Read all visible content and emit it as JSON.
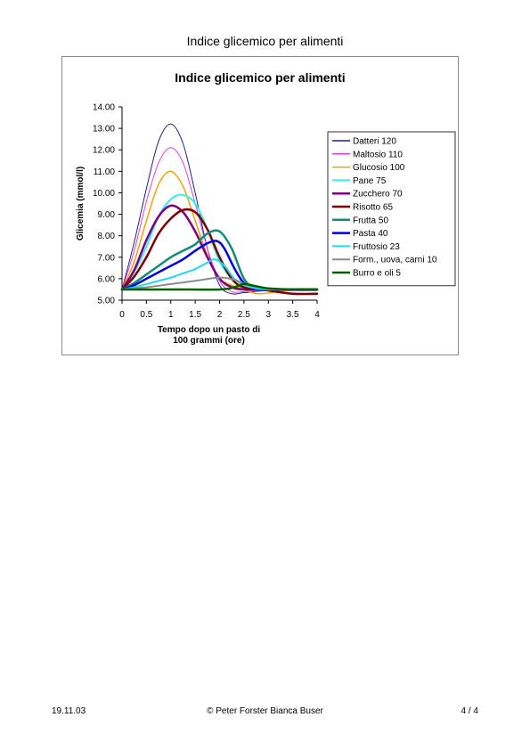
{
  "header": {
    "title": "Indice glicemico per alimenti"
  },
  "footer": {
    "date": "19.11.03",
    "copyright": "© Peter Forster Bianca Buser",
    "page": "4 / 4"
  },
  "chart_data": {
    "type": "line",
    "title": "Indice glicemico per alimenti",
    "xlabel_lines": [
      "Tempo dopo un pasto di",
      "100 grammi (ore)"
    ],
    "ylabel": "Glicemia (mmol/l)",
    "xlim": [
      0,
      4
    ],
    "ylim": [
      5,
      14
    ],
    "x_ticks": [
      "0",
      "0.5",
      "1",
      "1.5",
      "2",
      "2.5",
      "3",
      "3.5",
      "4"
    ],
    "y_ticks": [
      "5.00",
      "6.00",
      "7.00",
      "8.00",
      "9.00",
      "10.00",
      "11.00",
      "12.00",
      "13.00",
      "14.00"
    ],
    "grid": false,
    "legend_position": "right",
    "series": [
      {
        "name": "Datteri 120",
        "color": "#1f1f8c",
        "width": 1,
        "points": [
          [
            0,
            5.5
          ],
          [
            0.25,
            7.7
          ],
          [
            0.5,
            10.2
          ],
          [
            0.75,
            12.4
          ],
          [
            1,
            13.2
          ],
          [
            1.25,
            12.3
          ],
          [
            1.5,
            10.0
          ],
          [
            1.75,
            7.4
          ],
          [
            2,
            5.7
          ],
          [
            2.25,
            5.3
          ],
          [
            2.5,
            5.35
          ],
          [
            3,
            5.45
          ],
          [
            3.5,
            5.45
          ],
          [
            4,
            5.45
          ]
        ]
      },
      {
        "name": "Maltosio 110",
        "color": "#e040e0",
        "width": 1,
        "points": [
          [
            0,
            5.5
          ],
          [
            0.25,
            7.3
          ],
          [
            0.5,
            9.6
          ],
          [
            0.75,
            11.4
          ],
          [
            1,
            12.1
          ],
          [
            1.25,
            11.4
          ],
          [
            1.5,
            9.5
          ],
          [
            1.75,
            7.4
          ],
          [
            2,
            5.9
          ],
          [
            2.25,
            5.4
          ],
          [
            2.5,
            5.4
          ],
          [
            3,
            5.45
          ],
          [
            3.5,
            5.45
          ],
          [
            4,
            5.45
          ]
        ]
      },
      {
        "name": "Glucosio 100",
        "color": "#f5a000",
        "width": 1.5,
        "points": [
          [
            0,
            5.5
          ],
          [
            0.25,
            6.8
          ],
          [
            0.5,
            8.7
          ],
          [
            0.75,
            10.4
          ],
          [
            1,
            11.0
          ],
          [
            1.25,
            10.3
          ],
          [
            1.5,
            8.7
          ],
          [
            1.75,
            7.1
          ],
          [
            2,
            6.0
          ],
          [
            2.5,
            5.5
          ],
          [
            2.8,
            5.3
          ],
          [
            3.2,
            5.4
          ],
          [
            3.6,
            5.5
          ],
          [
            4,
            5.5
          ]
        ]
      },
      {
        "name": "Pane 75",
        "color": "#33f0f0",
        "width": 2,
        "points": [
          [
            0,
            5.5
          ],
          [
            0.25,
            6.3
          ],
          [
            0.5,
            7.5
          ],
          [
            0.75,
            8.9
          ],
          [
            1,
            9.7
          ],
          [
            1.25,
            9.9
          ],
          [
            1.5,
            9.5
          ],
          [
            1.75,
            8.3
          ],
          [
            2,
            6.8
          ],
          [
            2.25,
            6.0
          ],
          [
            2.5,
            5.6
          ],
          [
            3,
            5.5
          ],
          [
            3.5,
            5.5
          ],
          [
            4,
            5.5
          ]
        ]
      },
      {
        "name": "Zucchero 70",
        "color": "#800080",
        "width": 2.5,
        "points": [
          [
            0,
            5.5
          ],
          [
            0.25,
            6.4
          ],
          [
            0.5,
            7.8
          ],
          [
            0.75,
            8.9
          ],
          [
            1,
            9.4
          ],
          [
            1.25,
            9.1
          ],
          [
            1.5,
            8.2
          ],
          [
            1.75,
            7.0
          ],
          [
            2,
            6.0
          ],
          [
            2.25,
            5.6
          ],
          [
            2.5,
            5.5
          ],
          [
            3,
            5.5
          ],
          [
            3.5,
            5.5
          ],
          [
            4,
            5.5
          ]
        ]
      },
      {
        "name": "Risotto 65",
        "color": "#800000",
        "width": 2.5,
        "points": [
          [
            0,
            5.5
          ],
          [
            0.25,
            6.1
          ],
          [
            0.5,
            7.0
          ],
          [
            0.75,
            8.1
          ],
          [
            1,
            8.8
          ],
          [
            1.25,
            9.2
          ],
          [
            1.5,
            9.1
          ],
          [
            1.75,
            8.3
          ],
          [
            2,
            7.0
          ],
          [
            2.25,
            6.0
          ],
          [
            2.5,
            5.6
          ],
          [
            3,
            5.45
          ],
          [
            3.5,
            5.3
          ],
          [
            4,
            5.3
          ]
        ]
      },
      {
        "name": "Frutta 50",
        "color": "#148c78",
        "width": 2.5,
        "points": [
          [
            0,
            5.5
          ],
          [
            0.25,
            5.8
          ],
          [
            0.5,
            6.2
          ],
          [
            0.75,
            6.6
          ],
          [
            1,
            7.0
          ],
          [
            1.25,
            7.3
          ],
          [
            1.5,
            7.6
          ],
          [
            1.75,
            8.1
          ],
          [
            2,
            8.2
          ],
          [
            2.25,
            7.4
          ],
          [
            2.5,
            6.0
          ],
          [
            2.75,
            5.5
          ],
          [
            3,
            5.5
          ],
          [
            3.5,
            5.5
          ],
          [
            4,
            5.5
          ]
        ]
      },
      {
        "name": "Pasta 40",
        "color": "#0000e8",
        "width": 2.5,
        "points": [
          [
            0,
            5.5
          ],
          [
            0.25,
            5.7
          ],
          [
            0.5,
            6.0
          ],
          [
            0.75,
            6.3
          ],
          [
            1,
            6.6
          ],
          [
            1.25,
            6.9
          ],
          [
            1.5,
            7.3
          ],
          [
            1.75,
            7.65
          ],
          [
            1.95,
            7.75
          ],
          [
            2.1,
            7.4
          ],
          [
            2.3,
            6.5
          ],
          [
            2.5,
            5.8
          ],
          [
            2.75,
            5.5
          ],
          [
            3,
            5.5
          ],
          [
            3.5,
            5.5
          ],
          [
            4,
            5.5
          ]
        ]
      },
      {
        "name": "Fruttosio 23",
        "color": "#20d8f0",
        "width": 2,
        "points": [
          [
            0,
            5.5
          ],
          [
            0.25,
            5.6
          ],
          [
            0.5,
            5.75
          ],
          [
            0.75,
            5.9
          ],
          [
            1,
            6.05
          ],
          [
            1.25,
            6.25
          ],
          [
            1.5,
            6.45
          ],
          [
            1.75,
            6.75
          ],
          [
            1.9,
            6.9
          ],
          [
            2.1,
            6.6
          ],
          [
            2.3,
            6.0
          ],
          [
            2.5,
            5.7
          ],
          [
            2.75,
            5.55
          ],
          [
            3,
            5.5
          ],
          [
            3.5,
            5.5
          ],
          [
            4,
            5.5
          ]
        ]
      },
      {
        "name": "Form., uova, carni 10",
        "color": "#8c8c8c",
        "width": 2,
        "points": [
          [
            0,
            5.5
          ],
          [
            0.5,
            5.6
          ],
          [
            1,
            5.75
          ],
          [
            1.5,
            5.9
          ],
          [
            2,
            6.05
          ],
          [
            2.3,
            5.95
          ],
          [
            2.6,
            5.7
          ],
          [
            3,
            5.55
          ],
          [
            3.5,
            5.5
          ],
          [
            4,
            5.5
          ]
        ]
      },
      {
        "name": "Burro e oli 5",
        "color": "#006000",
        "width": 2.5,
        "points": [
          [
            0,
            5.5
          ],
          [
            1,
            5.5
          ],
          [
            2,
            5.5
          ],
          [
            2.3,
            5.6
          ],
          [
            2.5,
            5.75
          ],
          [
            2.75,
            5.65
          ],
          [
            3,
            5.55
          ],
          [
            3.5,
            5.5
          ],
          [
            4,
            5.5
          ]
        ]
      }
    ]
  }
}
